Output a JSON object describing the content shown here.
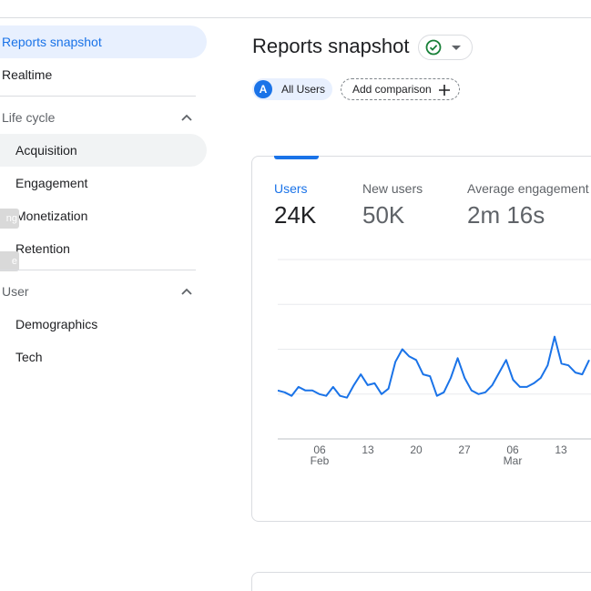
{
  "sidebar": {
    "items": [
      {
        "label": "Reports snapshot"
      },
      {
        "label": "Realtime"
      }
    ],
    "lifecycle": {
      "label": "Life cycle",
      "items": [
        {
          "label": "Acquisition"
        },
        {
          "label": "Engagement"
        },
        {
          "label": "Monetization"
        },
        {
          "label": "Retention"
        }
      ]
    },
    "user": {
      "label": "User",
      "items": [
        {
          "label": "Demographics"
        },
        {
          "label": "Tech"
        }
      ]
    },
    "edge_tags": [
      "ng",
      "e"
    ]
  },
  "main": {
    "title": "Reports snapshot",
    "status_icon": "check-circle-icon",
    "comparison": {
      "segment_initial": "A",
      "segment_label": "All Users",
      "add_label": "Add comparison"
    },
    "metrics": [
      {
        "label": "Users",
        "value": "24K"
      },
      {
        "label": "New users",
        "value": "50K"
      },
      {
        "label": "Average engagement",
        "value": "2m 16s"
      }
    ]
  },
  "colors": {
    "accent": "#1a73e8",
    "active_bg": "#e8f0fe",
    "success": "#188038",
    "line": "#1a73e8"
  },
  "chart_data": {
    "type": "line",
    "x_ticks": [
      {
        "day": "06",
        "month": "Feb"
      },
      {
        "day": "13",
        "month": ""
      },
      {
        "day": "20",
        "month": ""
      },
      {
        "day": "27",
        "month": ""
      },
      {
        "day": "06",
        "month": "Mar"
      },
      {
        "day": "13",
        "month": ""
      }
    ],
    "series": [
      {
        "values": [
          0.27,
          0.26,
          0.24,
          0.29,
          0.27,
          0.27,
          0.25,
          0.24,
          0.29,
          0.24,
          0.23,
          0.3,
          0.36,
          0.3,
          0.31,
          0.25,
          0.28,
          0.43,
          0.5,
          0.46,
          0.44,
          0.36,
          0.35,
          0.24,
          0.26,
          0.34,
          0.45,
          0.34,
          0.27,
          0.25,
          0.26,
          0.3,
          0.37,
          0.44,
          0.33,
          0.29,
          0.29,
          0.31,
          0.34,
          0.41,
          0.57,
          0.42,
          0.41,
          0.37,
          0.36,
          0.44
        ]
      }
    ],
    "ylim": [
      0,
      1
    ],
    "gridlines": 5,
    "legend": "none"
  }
}
